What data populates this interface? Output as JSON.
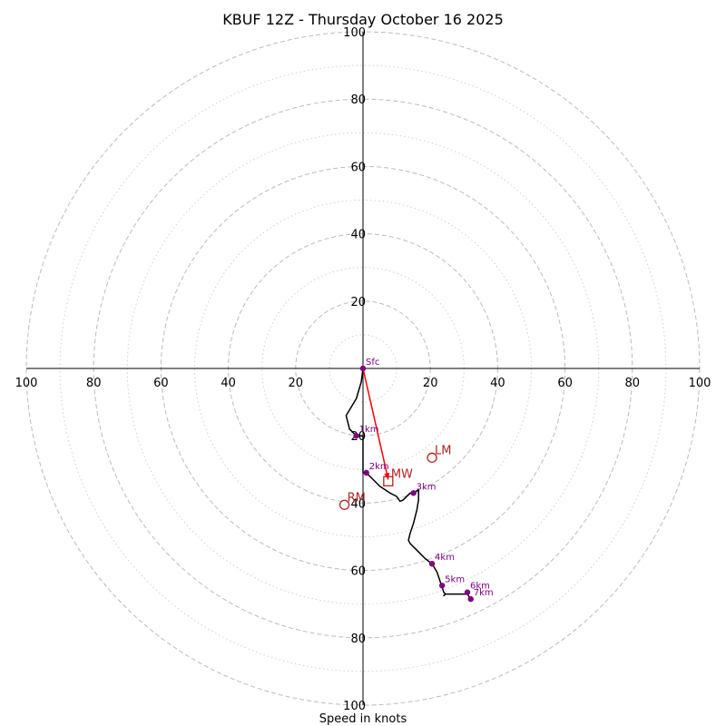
{
  "chart_data": {
    "type": "hodograph",
    "title": "KBUF 12Z - Thursday October 16 2025",
    "xlabel": "Speed in knots",
    "units": "knots",
    "range": [
      -100,
      100
    ],
    "major_rings": [
      20,
      40,
      60,
      80,
      100
    ],
    "minor_rings": [
      10,
      30,
      50,
      70,
      90
    ],
    "x_tick_labels": [
      "100",
      "80",
      "60",
      "40",
      "20",
      "20",
      "40",
      "60",
      "80",
      "100"
    ],
    "y_tick_labels": [
      "100",
      "80",
      "60",
      "40",
      "20",
      "20",
      "40",
      "60",
      "80",
      "100"
    ],
    "hodograph_trace": [
      {
        "u": 0,
        "v": 0
      },
      {
        "u": -0.5,
        "v": -4
      },
      {
        "u": -2,
        "v": -9
      },
      {
        "u": -5,
        "v": -14
      },
      {
        "u": -4,
        "v": -18
      },
      {
        "u": -2,
        "v": -20
      },
      {
        "u": 0,
        "v": -20
      },
      {
        "u": 0,
        "v": -24
      },
      {
        "u": 0,
        "v": -31
      },
      {
        "u": 1,
        "v": -31
      },
      {
        "u": 3,
        "v": -33
      },
      {
        "u": 5,
        "v": -35
      },
      {
        "u": 8,
        "v": -37
      },
      {
        "u": 10,
        "v": -38
      },
      {
        "u": 11,
        "v": -39.5
      },
      {
        "u": 12,
        "v": -39
      },
      {
        "u": 14,
        "v": -37
      },
      {
        "u": 15,
        "v": -37
      },
      {
        "u": 16.5,
        "v": -36
      },
      {
        "u": 16.5,
        "v": -39
      },
      {
        "u": 16,
        "v": -42
      },
      {
        "u": 15,
        "v": -46
      },
      {
        "u": 14,
        "v": -49
      },
      {
        "u": 13.5,
        "v": -51
      },
      {
        "u": 14,
        "v": -52
      },
      {
        "u": 16,
        "v": -54
      },
      {
        "u": 18.5,
        "v": -56.5
      },
      {
        "u": 20.5,
        "v": -58
      },
      {
        "u": 22,
        "v": -60.5
      },
      {
        "u": 23.5,
        "v": -65
      },
      {
        "u": 24,
        "v": -66.5
      },
      {
        "u": 24.5,
        "v": -67
      },
      {
        "u": 24,
        "v": -67.5
      },
      {
        "u": 24.5,
        "v": -67
      },
      {
        "u": 27,
        "v": -67
      },
      {
        "u": 31,
        "v": -67
      },
      {
        "u": 32,
        "v": -68.5
      }
    ],
    "height_markers": [
      {
        "label": "Sfc",
        "u": 0,
        "v": 0
      },
      {
        "label": "1km",
        "u": -2,
        "v": -20
      },
      {
        "label": "2km",
        "u": 1,
        "v": -31
      },
      {
        "label": "3km",
        "u": 15,
        "v": -37
      },
      {
        "label": "4km",
        "u": 20.5,
        "v": -58
      },
      {
        "label": "5km",
        "u": 23.5,
        "v": -64.5
      },
      {
        "label": "6km",
        "u": 31,
        "v": -66.5
      },
      {
        "label": "7km",
        "u": 32,
        "v": -68.5
      }
    ],
    "storm_motion": [
      {
        "label": "LM",
        "u": 20.5,
        "v": -26.5,
        "marker": "circle"
      },
      {
        "label": "RM",
        "u": -5.5,
        "v": -40.5,
        "marker": "circle"
      },
      {
        "label": "MW",
        "u": 7.5,
        "v": -33.5,
        "marker": "square"
      }
    ],
    "shear_vector": {
      "from": [
        0,
        0
      ],
      "to": [
        7.5,
        -33
      ]
    },
    "colors": {
      "trace": "#000000",
      "markers": "#800080",
      "storm_motion": "#b22222",
      "shear_vector": "#ff0000",
      "rings": "#bbbbbb",
      "axes": "#000000"
    }
  }
}
